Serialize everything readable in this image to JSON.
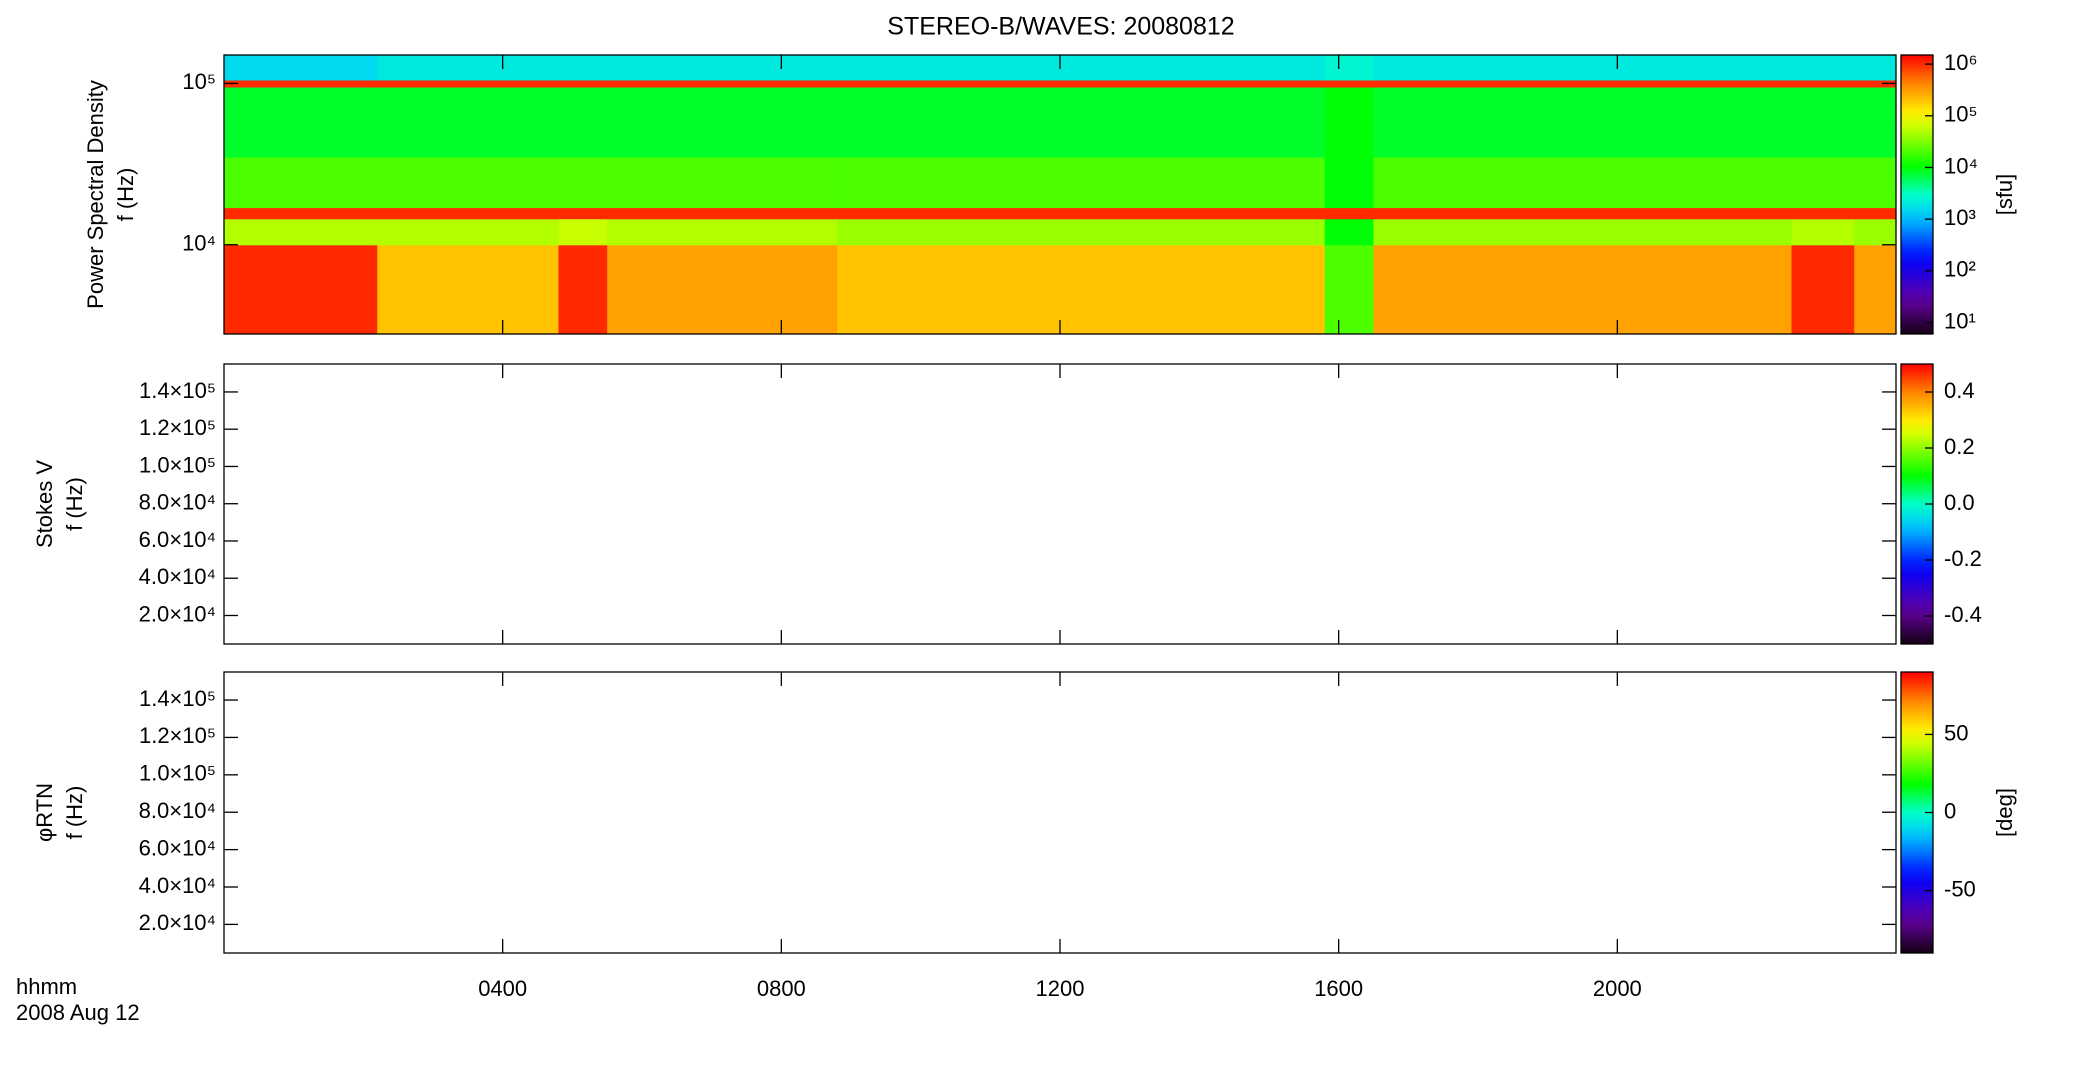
{
  "chart_data": [
    {
      "type": "heatmap",
      "title": "STEREO-B/WAVES: 20080812",
      "ylabel": [
        "Power Spectral Density",
        "f (Hz)"
      ],
      "ylog": true,
      "ylim": [
        2800,
        150000
      ],
      "yticks": [
        {
          "value": 10000,
          "label": "10⁴"
        },
        {
          "value": 100000,
          "label": "10⁵"
        }
      ],
      "xlim": [
        0,
        24
      ],
      "x_edges": [
        0,
        2.2,
        4.8,
        5.5,
        8.8,
        15.8,
        16.5,
        22.5,
        23.4,
        24
      ],
      "y_edges": [
        2800,
        10000,
        14500,
        17000,
        35000,
        95000,
        105000,
        150000
      ],
      "values": [
        [
          1000000,
          200000,
          1000000,
          300000,
          200000,
          20000,
          300000,
          1000000,
          300000
        ],
        [
          50000,
          50000,
          60000,
          50000,
          40000,
          10000,
          40000,
          50000,
          40000
        ],
        [
          1000000,
          1000000,
          1000000,
          1000000,
          1000000,
          1000000,
          1000000,
          1000000,
          1000000
        ],
        [
          20000,
          20000,
          20000,
          20000,
          20000,
          10000,
          20000,
          20000,
          20000
        ],
        [
          8000,
          8000,
          8000,
          8000,
          8000,
          10000,
          8000,
          8000,
          8000
        ],
        [
          1000000,
          1000000,
          1000000,
          1000000,
          1000000,
          1000000,
          1000000,
          1000000,
          1000000
        ],
        [
          1500,
          2000,
          2000,
          2000,
          2000,
          2500,
          2000,
          2000,
          2000
        ]
      ],
      "colormap": "rainbow",
      "colorbar": {
        "log": true,
        "lim": [
          6,
          1500000
        ],
        "label": "[sfu]",
        "ticks": [
          {
            "value": 10,
            "label": "10¹"
          },
          {
            "value": 100,
            "label": "10²"
          },
          {
            "value": 1000,
            "label": "10³"
          },
          {
            "value": 10000,
            "label": "10⁴"
          },
          {
            "value": 100000,
            "label": "10⁵"
          },
          {
            "value": 1000000,
            "label": "10⁶"
          }
        ]
      }
    },
    {
      "type": "heatmap",
      "ylabel": [
        "Stokes V",
        "f (Hz)"
      ],
      "ylog": false,
      "ylim": [
        4700,
        155000
      ],
      "yticks": [
        {
          "value": 20000,
          "label": "2.0×10⁴"
        },
        {
          "value": 40000,
          "label": "4.0×10⁴"
        },
        {
          "value": 60000,
          "label": "6.0×10⁴"
        },
        {
          "value": 80000,
          "label": "8.0×10⁴"
        },
        {
          "value": 100000,
          "label": "1.0×10⁵"
        },
        {
          "value": 120000,
          "label": "1.2×10⁵"
        },
        {
          "value": 140000,
          "label": "1.4×10⁵"
        }
      ],
      "xlim": [
        0,
        24
      ],
      "colormap": "rainbow",
      "colorbar": {
        "log": false,
        "lim": [
          -0.5,
          0.5
        ],
        "ticks": [
          -0.4,
          -0.2,
          {
            "value": 0,
            "label": "0.0"
          },
          0.2,
          0.4
        ]
      }
    },
    {
      "type": "heatmap",
      "ylabel": [
        "φRTN",
        "f (Hz)"
      ],
      "ylog": false,
      "ylim": [
        4700,
        155000
      ],
      "yticks": [
        {
          "value": 20000,
          "label": "2.0×10⁴"
        },
        {
          "value": 40000,
          "label": "4.0×10⁴"
        },
        {
          "value": 60000,
          "label": "6.0×10⁴"
        },
        {
          "value": 80000,
          "label": "8.0×10⁴"
        },
        {
          "value": 100000,
          "label": "1.0×10⁵"
        },
        {
          "value": 120000,
          "label": "1.2×10⁵"
        },
        {
          "value": 140000,
          "label": "1.4×10⁵"
        }
      ],
      "xlim": [
        0,
        24
      ],
      "xticks": [
        {
          "value": 4,
          "label": "0400"
        },
        {
          "value": 8,
          "label": "0800"
        },
        {
          "value": 12,
          "label": "1200"
        },
        {
          "value": 16,
          "label": "1600"
        },
        {
          "value": 20,
          "label": "2000"
        }
      ],
      "xlabel": [
        "hhmm",
        "2008 Aug 12"
      ],
      "colormap": "rainbow",
      "colorbar": {
        "log": false,
        "lim": [
          -90,
          90
        ],
        "label": "[deg]",
        "ticks": [
          -50,
          0,
          50
        ]
      }
    }
  ]
}
